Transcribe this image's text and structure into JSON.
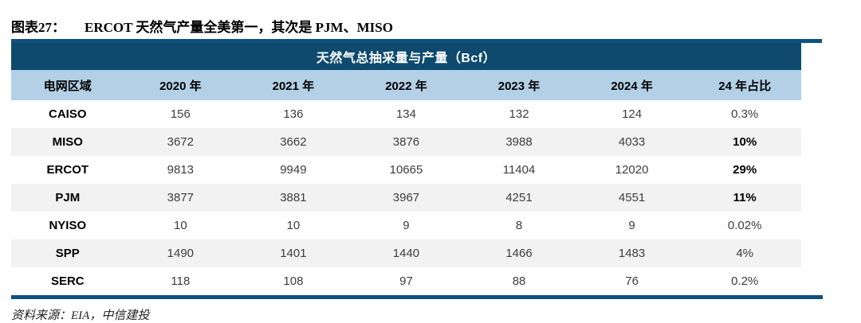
{
  "figure": {
    "label": "图表27：",
    "title": "ERCOT 天然气产量全美第一，其次是 PJM、MISO"
  },
  "table": {
    "header": "天然气总抽采量与产量（Bcf）",
    "columns": [
      "电网区域",
      "2020 年",
      "2021 年",
      "2022 年",
      "2023 年",
      "2024 年",
      "24 年占比"
    ],
    "rows": [
      {
        "region": "CAISO",
        "values": [
          "156",
          "136",
          "134",
          "132",
          "124"
        ],
        "share": "0.3%",
        "share_bold": false
      },
      {
        "region": "MISO",
        "values": [
          "3672",
          "3662",
          "3876",
          "3988",
          "4033"
        ],
        "share": "10%",
        "share_bold": true
      },
      {
        "region": "ERCOT",
        "values": [
          "9813",
          "9949",
          "10665",
          "11404",
          "12020"
        ],
        "share": "29%",
        "share_bold": true
      },
      {
        "region": "PJM",
        "values": [
          "3877",
          "3881",
          "3967",
          "4251",
          "4551"
        ],
        "share": "11%",
        "share_bold": true
      },
      {
        "region": "NYISO",
        "values": [
          "10",
          "10",
          "9",
          "8",
          "9"
        ],
        "share": "0.02%",
        "share_bold": false
      },
      {
        "region": "SPP",
        "values": [
          "1490",
          "1401",
          "1440",
          "1466",
          "1483"
        ],
        "share": "4%",
        "share_bold": false
      },
      {
        "region": "SERC",
        "values": [
          "118",
          "108",
          "97",
          "88",
          "76"
        ],
        "share": "0.2%",
        "share_bold": false
      }
    ]
  },
  "source": "资料来源：EIA，中信建投",
  "colors": {
    "header_navy": "#0d4a6e",
    "rule_navy": "#11507c",
    "column_header_blue": "#b3d0e6",
    "stripe_gray": "#f2f2f2",
    "value_text": "#3d3d3d"
  },
  "chart_data": {
    "type": "table",
    "title": "天然气总抽采量与产量（Bcf）",
    "columns": [
      "电网区域",
      "2020 年",
      "2021 年",
      "2022 年",
      "2023 年",
      "2024 年",
      "24 年占比"
    ],
    "rows": [
      [
        "CAISO",
        156,
        136,
        134,
        132,
        124,
        "0.3%"
      ],
      [
        "MISO",
        3672,
        3662,
        3876,
        3988,
        4033,
        "10%"
      ],
      [
        "ERCOT",
        9813,
        9949,
        10665,
        11404,
        12020,
        "29%"
      ],
      [
        "PJM",
        3877,
        3881,
        3967,
        4251,
        4551,
        "11%"
      ],
      [
        "NYISO",
        10,
        10,
        9,
        8,
        9,
        "0.02%"
      ],
      [
        "SPP",
        1490,
        1401,
        1440,
        1466,
        1483,
        "4%"
      ],
      [
        "SERC",
        118,
        108,
        97,
        88,
        76,
        "0.2%"
      ]
    ]
  }
}
